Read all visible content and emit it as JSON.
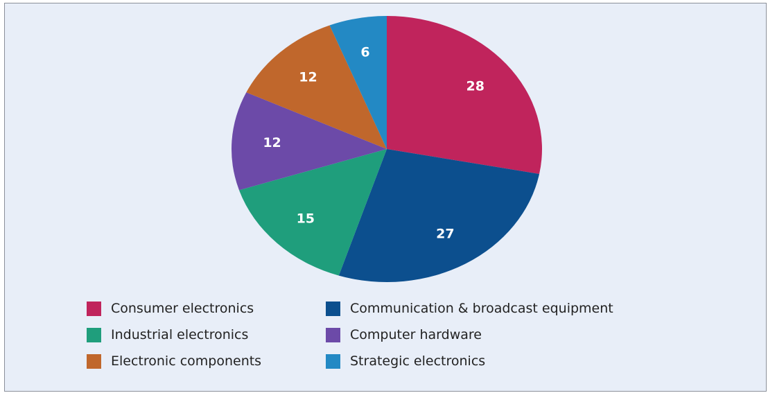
{
  "chart_data": {
    "type": "pie",
    "title": "",
    "slices": [
      {
        "label": "Consumer electronics",
        "value": 28,
        "color": "#c0245c"
      },
      {
        "label": "Communication & broadcast equipment",
        "value": 27,
        "color": "#0c4f8e"
      },
      {
        "label": "Industrial electronics",
        "value": 15,
        "color": "#1f9e7c"
      },
      {
        "label": "Computer hardware",
        "value": 12,
        "color": "#6c4aa8"
      },
      {
        "label": "Electronic components",
        "value": 12,
        "color": "#c0672c"
      },
      {
        "label": "Strategic electronics",
        "value": 6,
        "color": "#2389c4"
      }
    ],
    "start": "top, clockwise",
    "legend_position": "bottom"
  },
  "legend_order": [
    0,
    1,
    2,
    3,
    4,
    5
  ]
}
